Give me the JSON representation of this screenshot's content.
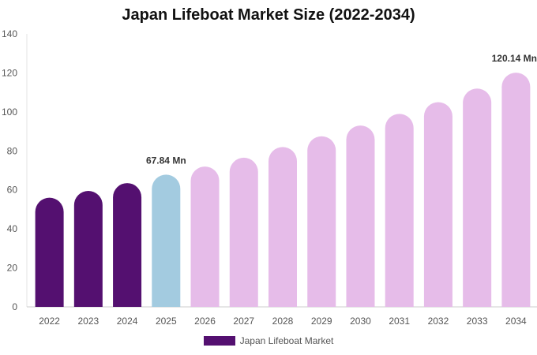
{
  "chart_data": {
    "type": "bar",
    "title": "Japan Lifeboat Market Size (2022-2034)",
    "categories": [
      "2022",
      "2023",
      "2024",
      "2025",
      "2026",
      "2027",
      "2028",
      "2029",
      "2030",
      "2031",
      "2032",
      "2033",
      "2034"
    ],
    "series": [
      {
        "name": "Japan Lifeboat Market",
        "values": [
          56,
          59.5,
          63.5,
          67.84,
          72,
          76.5,
          82,
          87.5,
          93,
          99,
          105,
          112,
          120.14
        ]
      }
    ],
    "bar_colors": [
      "#541070",
      "#541070",
      "#541070",
      "#a3cbe0",
      "#e6bce9",
      "#e6bce9",
      "#e6bce9",
      "#e6bce9",
      "#e6bce9",
      "#e6bce9",
      "#e6bce9",
      "#e6bce9",
      "#e6bce9"
    ],
    "legend_color": "#541070",
    "data_labels": [
      {
        "index": 3,
        "text": "67.84 Mn"
      },
      {
        "index": 12,
        "text": "120.14 Mn"
      }
    ],
    "yticks": [
      0,
      20,
      40,
      60,
      80,
      100,
      120,
      140
    ],
    "ylim": [
      0,
      140
    ],
    "xlabel": "",
    "ylabel": "",
    "grid": false,
    "legend_position": "bottom"
  }
}
